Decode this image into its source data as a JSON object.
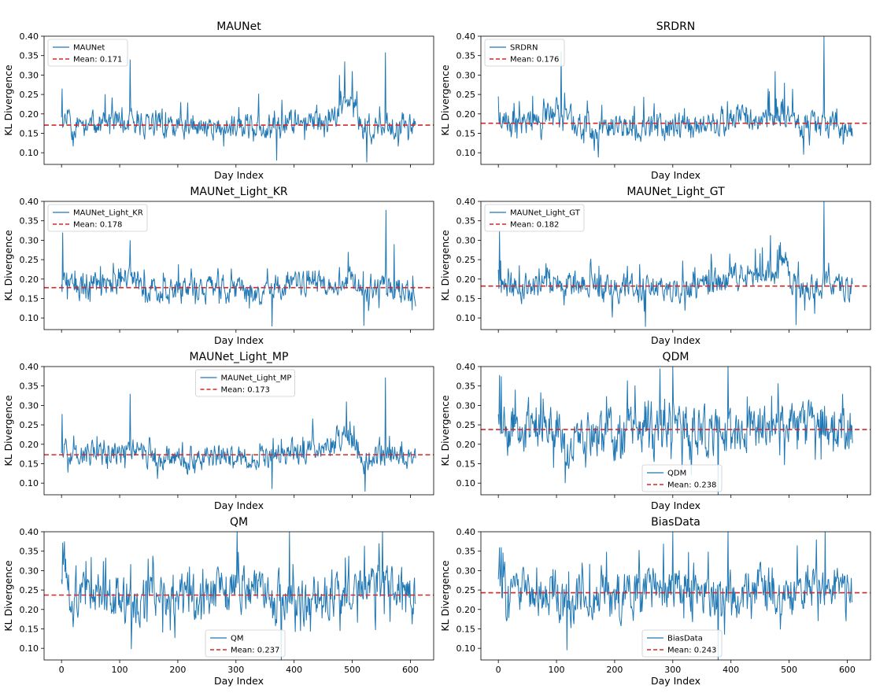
{
  "figure": {
    "xlabel": "Day Index",
    "ylabel": "KL Divergence",
    "ylim": [
      0.07,
      0.4
    ],
    "xlim": [
      -30,
      640
    ],
    "yticks": [
      0.1,
      0.15,
      0.2,
      0.25,
      0.3,
      0.35,
      0.4
    ],
    "xticks": [
      0,
      100,
      200,
      300,
      400,
      500,
      600
    ],
    "n_days": 610,
    "line_color": "#1f77b4",
    "mean_color": "#d62728"
  },
  "chart_data": [
    {
      "type": "line",
      "title": "MAUNet",
      "series_name": "MAUNet",
      "mean": 0.171,
      "mean_label": "Mean: 0.171",
      "legend_loc": "upper-left",
      "profile": [
        [
          0,
          0.205
        ],
        [
          20,
          0.165
        ],
        [
          60,
          0.172
        ],
        [
          100,
          0.185
        ],
        [
          120,
          0.178
        ],
        [
          160,
          0.165
        ],
        [
          200,
          0.162
        ],
        [
          260,
          0.168
        ],
        [
          300,
          0.165
        ],
        [
          350,
          0.165
        ],
        [
          390,
          0.18
        ],
        [
          430,
          0.175
        ],
        [
          460,
          0.19
        ],
        [
          490,
          0.215
        ],
        [
          505,
          0.21
        ],
        [
          520,
          0.155
        ],
        [
          540,
          0.15
        ],
        [
          560,
          0.17
        ],
        [
          610,
          0.165
        ]
      ],
      "amp": 0.03,
      "spikes": [
        [
          1,
          0.265
        ],
        [
          118,
          0.34
        ],
        [
          487,
          0.335
        ],
        [
          478,
          0.3
        ],
        [
          500,
          0.31
        ],
        [
          557,
          0.358
        ],
        [
          525,
          0.075
        ],
        [
          370,
          0.08
        ]
      ],
      "seed": 11
    },
    {
      "type": "line",
      "title": "SRDRN",
      "series_name": "SRDRN",
      "mean": 0.176,
      "mean_label": "Mean: 0.176",
      "legend_loc": "upper-left",
      "profile": [
        [
          0,
          0.19
        ],
        [
          40,
          0.175
        ],
        [
          80,
          0.2
        ],
        [
          110,
          0.22
        ],
        [
          130,
          0.18
        ],
        [
          160,
          0.16
        ],
        [
          200,
          0.165
        ],
        [
          260,
          0.17
        ],
        [
          300,
          0.165
        ],
        [
          360,
          0.17
        ],
        [
          400,
          0.185
        ],
        [
          440,
          0.19
        ],
        [
          475,
          0.2
        ],
        [
          500,
          0.2
        ],
        [
          520,
          0.16
        ],
        [
          560,
          0.17
        ],
        [
          610,
          0.16
        ]
      ],
      "amp": 0.032,
      "spikes": [
        [
          0,
          0.245
        ],
        [
          108,
          0.36
        ],
        [
          476,
          0.31
        ],
        [
          492,
          0.28
        ],
        [
          560,
          0.4
        ],
        [
          525,
          0.095
        ]
      ],
      "seed": 23
    },
    {
      "type": "line",
      "title": "MAUNet_Light_KR",
      "series_name": "MAUNet_Light_KR",
      "mean": 0.178,
      "mean_label": "Mean: 0.178",
      "legend_loc": "upper-left",
      "profile": [
        [
          0,
          0.2
        ],
        [
          40,
          0.17
        ],
        [
          80,
          0.19
        ],
        [
          120,
          0.2
        ],
        [
          160,
          0.175
        ],
        [
          200,
          0.17
        ],
        [
          260,
          0.175
        ],
        [
          300,
          0.17
        ],
        [
          350,
          0.17
        ],
        [
          400,
          0.19
        ],
        [
          460,
          0.2
        ],
        [
          500,
          0.195
        ],
        [
          520,
          0.16
        ],
        [
          560,
          0.185
        ],
        [
          610,
          0.16
        ]
      ],
      "amp": 0.032,
      "spikes": [
        [
          2,
          0.32
        ],
        [
          118,
          0.3
        ],
        [
          558,
          0.378
        ],
        [
          493,
          0.27
        ],
        [
          520,
          0.08
        ],
        [
          362,
          0.078
        ],
        [
          572,
          0.29
        ]
      ],
      "seed": 37
    },
    {
      "type": "line",
      "title": "MAUNet_Light_GT",
      "series_name": "MAUNet_Light_GT",
      "mean": 0.182,
      "mean_label": "Mean: 0.182",
      "legend_loc": "upper-left",
      "profile": [
        [
          0,
          0.19
        ],
        [
          40,
          0.175
        ],
        [
          80,
          0.195
        ],
        [
          120,
          0.19
        ],
        [
          160,
          0.18
        ],
        [
          200,
          0.175
        ],
        [
          260,
          0.18
        ],
        [
          300,
          0.175
        ],
        [
          350,
          0.18
        ],
        [
          400,
          0.2
        ],
        [
          460,
          0.21
        ],
        [
          490,
          0.23
        ],
        [
          505,
          0.2
        ],
        [
          520,
          0.165
        ],
        [
          560,
          0.19
        ],
        [
          610,
          0.17
        ]
      ],
      "amp": 0.032,
      "spikes": [
        [
          2,
          0.323
        ],
        [
          560,
          0.4
        ],
        [
          468,
          0.313
        ],
        [
          485,
          0.295
        ],
        [
          253,
          0.077
        ],
        [
          512,
          0.082
        ]
      ],
      "seed": 41
    },
    {
      "type": "line",
      "title": "MAUNet_Light_MP",
      "series_name": "MAUNet_Light_MP",
      "mean": 0.173,
      "mean_label": "Mean: 0.173",
      "legend_loc": "upper-center",
      "profile": [
        [
          0,
          0.19
        ],
        [
          40,
          0.17
        ],
        [
          80,
          0.18
        ],
        [
          120,
          0.185
        ],
        [
          160,
          0.17
        ],
        [
          200,
          0.165
        ],
        [
          260,
          0.17
        ],
        [
          300,
          0.165
        ],
        [
          350,
          0.168
        ],
        [
          400,
          0.18
        ],
        [
          460,
          0.19
        ],
        [
          490,
          0.22
        ],
        [
          505,
          0.2
        ],
        [
          520,
          0.155
        ],
        [
          560,
          0.175
        ],
        [
          610,
          0.16
        ]
      ],
      "amp": 0.03,
      "spikes": [
        [
          1,
          0.278
        ],
        [
          118,
          0.33
        ],
        [
          557,
          0.372
        ],
        [
          490,
          0.31
        ],
        [
          522,
          0.078
        ],
        [
          362,
          0.085
        ]
      ],
      "seed": 53
    },
    {
      "type": "line",
      "title": "QDM",
      "series_name": "QDM",
      "mean": 0.238,
      "mean_label": "Mean: 0.238",
      "legend_loc": "lower-center",
      "profile": [
        [
          0,
          0.3
        ],
        [
          15,
          0.23
        ],
        [
          60,
          0.245
        ],
        [
          100,
          0.23
        ],
        [
          120,
          0.2
        ],
        [
          150,
          0.235
        ],
        [
          200,
          0.225
        ],
        [
          260,
          0.24
        ],
        [
          300,
          0.255
        ],
        [
          340,
          0.24
        ],
        [
          380,
          0.23
        ],
        [
          420,
          0.235
        ],
        [
          460,
          0.245
        ],
        [
          520,
          0.24
        ],
        [
          560,
          0.255
        ],
        [
          610,
          0.23
        ]
      ],
      "amp": 0.055,
      "spikes": [
        [
          2,
          0.378
        ],
        [
          5,
          0.375
        ],
        [
          395,
          0.405
        ],
        [
          300,
          0.4
        ],
        [
          278,
          0.395
        ],
        [
          378,
          0.06
        ],
        [
          115,
          0.1
        ],
        [
          545,
          0.16
        ]
      ],
      "seed": 67
    },
    {
      "type": "line",
      "title": "QM",
      "series_name": "QM",
      "mean": 0.237,
      "mean_label": "Mean: 0.237",
      "legend_loc": "lower-center",
      "profile": [
        [
          0,
          0.3
        ],
        [
          15,
          0.23
        ],
        [
          60,
          0.245
        ],
        [
          100,
          0.23
        ],
        [
          120,
          0.2
        ],
        [
          150,
          0.235
        ],
        [
          200,
          0.225
        ],
        [
          260,
          0.24
        ],
        [
          300,
          0.255
        ],
        [
          340,
          0.24
        ],
        [
          380,
          0.23
        ],
        [
          420,
          0.235
        ],
        [
          460,
          0.245
        ],
        [
          520,
          0.24
        ],
        [
          560,
          0.255
        ],
        [
          610,
          0.23
        ]
      ],
      "amp": 0.055,
      "spikes": [
        [
          2,
          0.372
        ],
        [
          5,
          0.375
        ],
        [
          302,
          0.405
        ],
        [
          392,
          0.405
        ],
        [
          378,
          0.06
        ],
        [
          120,
          0.098
        ],
        [
          546,
          0.37
        ]
      ],
      "seed": 71
    },
    {
      "type": "line",
      "title": "BiasData",
      "series_name": "BiasData",
      "mean": 0.243,
      "mean_label": "Mean: 0.243",
      "legend_loc": "lower-center",
      "profile": [
        [
          0,
          0.3
        ],
        [
          15,
          0.24
        ],
        [
          60,
          0.25
        ],
        [
          100,
          0.24
        ],
        [
          120,
          0.2
        ],
        [
          150,
          0.24
        ],
        [
          200,
          0.23
        ],
        [
          260,
          0.245
        ],
        [
          300,
          0.26
        ],
        [
          340,
          0.245
        ],
        [
          380,
          0.235
        ],
        [
          420,
          0.24
        ],
        [
          460,
          0.25
        ],
        [
          520,
          0.245
        ],
        [
          560,
          0.26
        ],
        [
          610,
          0.235
        ]
      ],
      "amp": 0.055,
      "spikes": [
        [
          2,
          0.36
        ],
        [
          5,
          0.36
        ],
        [
          300,
          0.4
        ],
        [
          395,
          0.405
        ],
        [
          562,
          0.405
        ],
        [
          378,
          0.06
        ],
        [
          118,
          0.095
        ],
        [
          547,
          0.38
        ]
      ],
      "seed": 83
    }
  ]
}
